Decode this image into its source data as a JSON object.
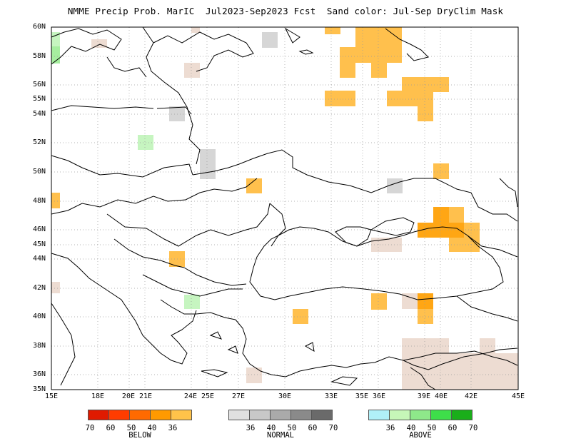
{
  "title": "NMME Precip Prob. MarIC  Jul2023-Sep2023 Fcst  Sand color: Jul-Sep DryClim Mask",
  "map": {
    "lon_range": [
      15,
      45
    ],
    "lat_range": [
      35,
      60
    ],
    "x_ticks": [
      "15E",
      "18E",
      "20E 21E",
      "24E 25E",
      "27E",
      "30E",
      "33E",
      "35E 36E",
      "39E 40E",
      "42E",
      "45E"
    ],
    "y_ticks": [
      "60N",
      "58N",
      "56N",
      "55N",
      "54N",
      "52N",
      "50N",
      "48N",
      "46N",
      "45N",
      "44N",
      "42N",
      "40N",
      "38N",
      "36N",
      "35N"
    ],
    "colors": {
      "below_36": "#ffc04d",
      "below_40": "#ffa614",
      "normal_36": "#d6d6d6",
      "above_36": "#c6f5c0",
      "above_40": "#a6ee9f",
      "dry_mask": "#eddcd2",
      "grid": "#9a9a9a",
      "coast": "#000000"
    }
  },
  "legend": {
    "below": {
      "title": "BELOW",
      "ticks": [
        "70",
        "60",
        "50",
        "40",
        "36"
      ],
      "colors": [
        "#e01a00",
        "#ff3c00",
        "#ff6a00",
        "#ff9a00",
        "#ffc34a"
      ]
    },
    "normal": {
      "title": "NORMAL",
      "ticks": [
        "36",
        "40",
        "50",
        "60",
        "70"
      ],
      "colors": [
        "#e0e0e0",
        "#c8c8c8",
        "#aaaaaa",
        "#8a8a8a",
        "#6a6a6a"
      ]
    },
    "above": {
      "title": "ABOVE",
      "ticks": [
        "36",
        "40",
        "50",
        "60",
        "70"
      ],
      "colors": [
        "#b0f0f8",
        "#c6f7b8",
        "#8ee88a",
        "#3ede4a",
        "#1aae1a"
      ]
    }
  }
}
